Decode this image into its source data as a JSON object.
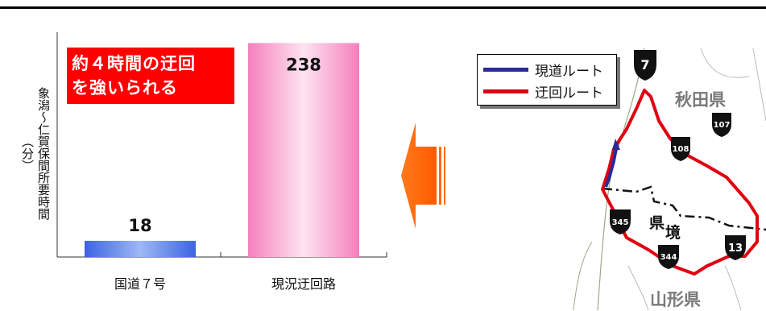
{
  "chart_data": {
    "type": "bar",
    "categories": [
      "国道７号",
      "現況迂回路"
    ],
    "values": [
      18,
      238
    ],
    "data_labels": [
      "18",
      "238"
    ],
    "ylabel": [
      "象潟～仁賀保間所要時間",
      "（分）"
    ],
    "ylim": [
      0,
      250
    ],
    "grid": false,
    "colors": [
      "#4a78e6",
      "#f7a0cc"
    ]
  },
  "callout": {
    "line1": "約４時間の迂回",
    "line2": "を強いられる",
    "color": "#ff0000"
  },
  "legend": {
    "items": [
      {
        "label": "現道ルート",
        "color": "#2a2a9a"
      },
      {
        "label": "迂回ルート",
        "color": "#e00010"
      }
    ]
  },
  "map": {
    "prefectures": [
      "秋田県",
      "山形県"
    ],
    "border_label": [
      "県",
      "境"
    ],
    "route_shields": [
      "7",
      "107",
      "108",
      "345",
      "344",
      "13"
    ]
  },
  "arrow_color": "#ff6a10"
}
